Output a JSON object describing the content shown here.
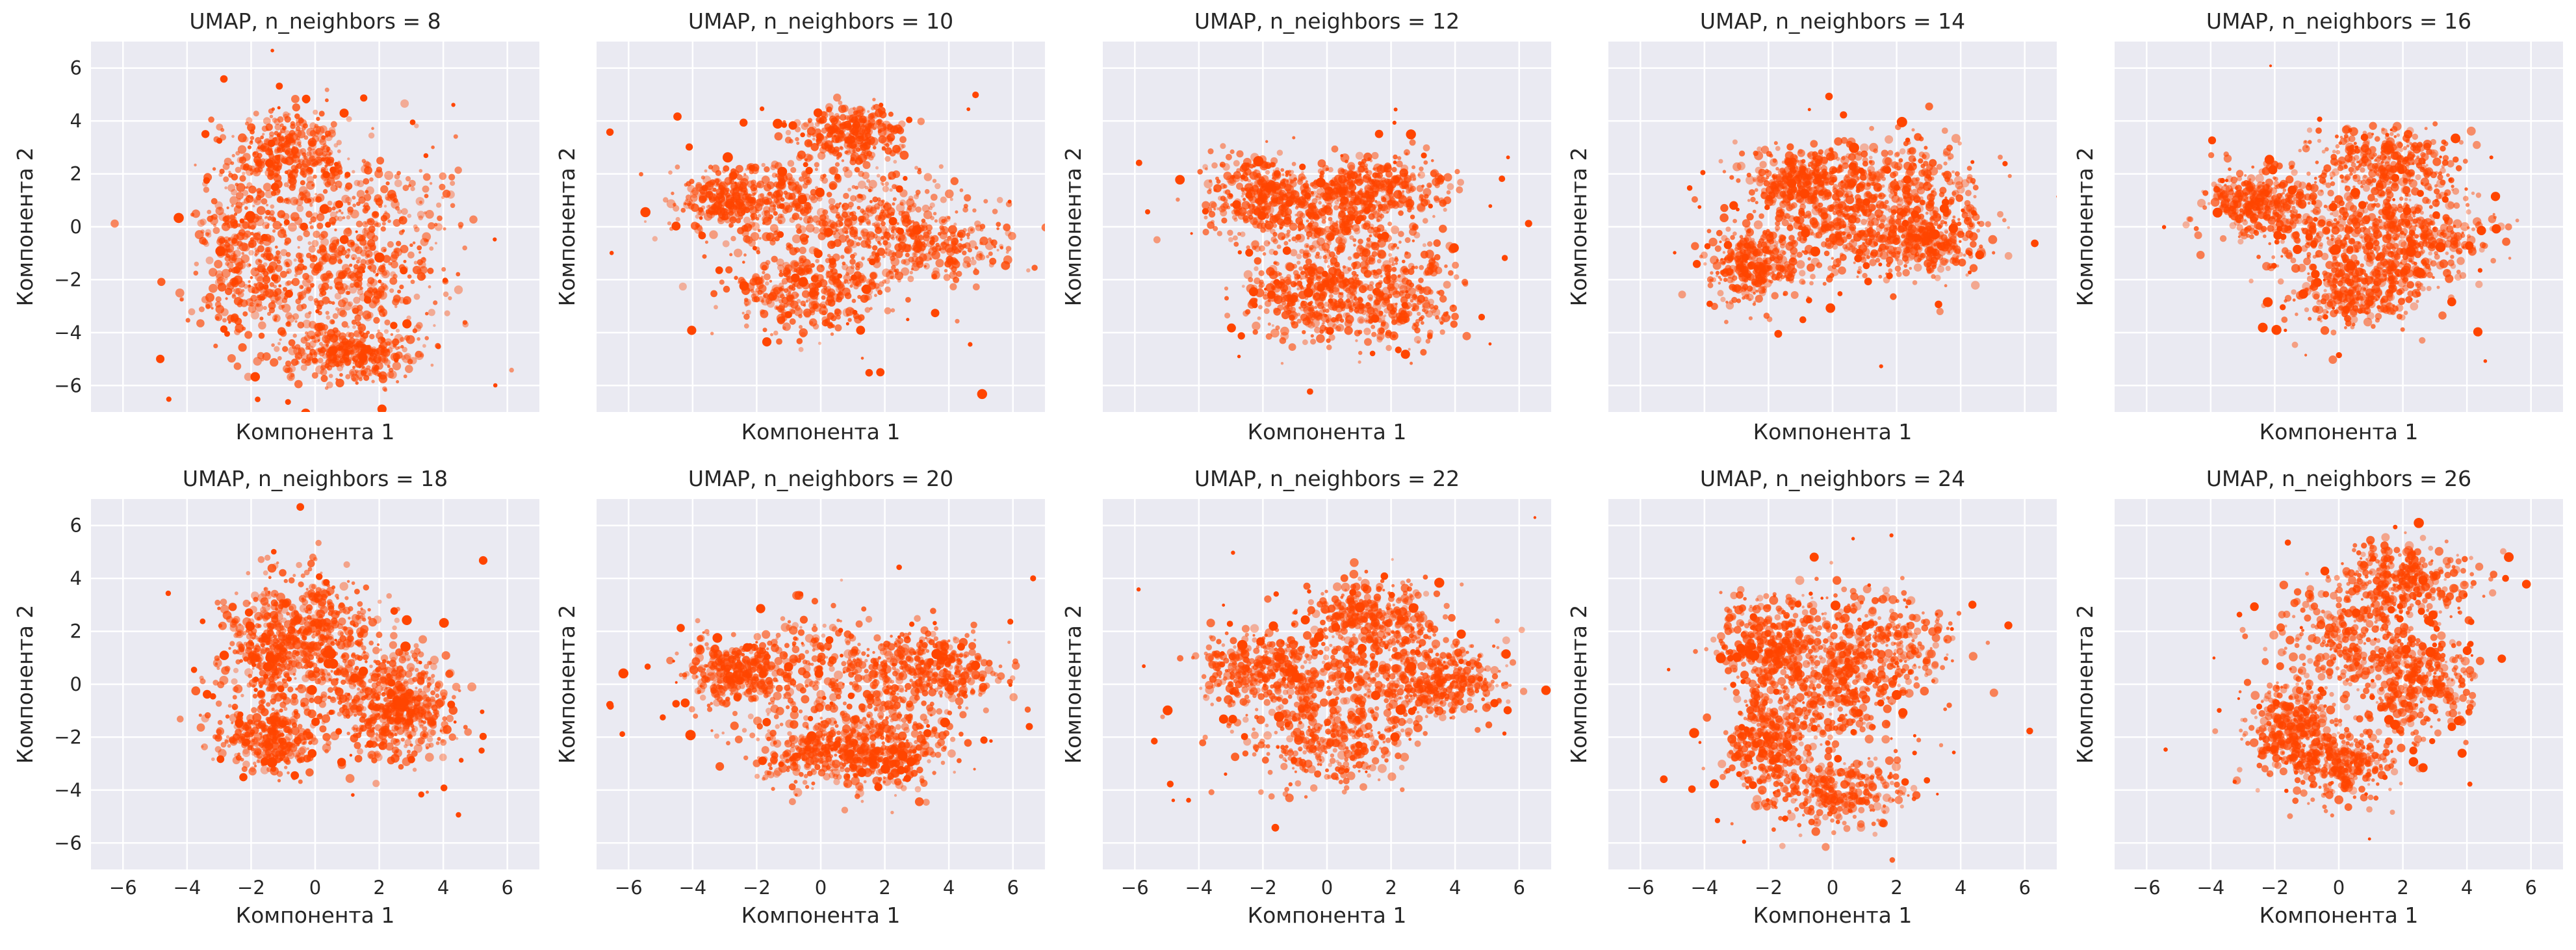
{
  "chart_data": {
    "type": "scatter",
    "layout": "2 rows x 5 columns",
    "shared_axes": true,
    "point_color": "#ff4500",
    "background_color": "#eaeaf2",
    "grid": true,
    "xlim": [
      -7,
      7
    ],
    "ylim": [
      -7,
      7
    ],
    "x_ticks": [
      -6,
      -4,
      -2,
      0,
      2,
      4,
      6
    ],
    "y_ticks": [
      -6,
      -4,
      -2,
      0,
      2,
      4,
      6
    ],
    "x_tick_labels": [
      "−6",
      "−4",
      "−2",
      "0",
      "2",
      "4",
      "6"
    ],
    "y_tick_labels": [
      "−6",
      "−4",
      "−2",
      "0",
      "2",
      "4",
      "6"
    ],
    "xlabel": "Компонента 1",
    "ylabel": "Компонента 2",
    "panels": [
      {
        "title": "UMAP, n_neighbors = 8",
        "n_neighbors": 8,
        "clusters": [
          {
            "x": -0.8,
            "y": 2.8,
            "sx": 1.0,
            "sy": 1.0
          },
          {
            "x": 0.3,
            "y": -2.5,
            "sx": 2.0,
            "sy": 1.4
          },
          {
            "x": 1.5,
            "y": 0.3,
            "sx": 1.8,
            "sy": 1.6
          },
          {
            "x": -2.2,
            "y": -0.5,
            "sx": 0.9,
            "sy": 1.8
          },
          {
            "x": 1.0,
            "y": -4.8,
            "sx": 1.2,
            "sy": 0.6
          }
        ]
      },
      {
        "title": "UMAP, n_neighbors = 10",
        "n_neighbors": 10,
        "clusters": [
          {
            "x": -2.8,
            "y": 1.0,
            "sx": 1.1,
            "sy": 0.7
          },
          {
            "x": 0.5,
            "y": 0.5,
            "sx": 2.0,
            "sy": 1.2
          },
          {
            "x": 3.0,
            "y": -0.5,
            "sx": 1.6,
            "sy": 1.0
          },
          {
            "x": 1.0,
            "y": 3.5,
            "sx": 1.0,
            "sy": 0.6
          },
          {
            "x": -0.5,
            "y": -2.5,
            "sx": 1.4,
            "sy": 0.9
          }
        ]
      },
      {
        "title": "UMAP, n_neighbors = 12",
        "n_neighbors": 12,
        "clusters": [
          {
            "x": -2.0,
            "y": 1.2,
            "sx": 1.1,
            "sy": 0.9
          },
          {
            "x": 0.2,
            "y": 0.0,
            "sx": 1.6,
            "sy": 1.3
          },
          {
            "x": 2.0,
            "y": -2.5,
            "sx": 1.3,
            "sy": 1.2
          },
          {
            "x": -0.5,
            "y": -2.8,
            "sx": 1.2,
            "sy": 0.9
          },
          {
            "x": 1.5,
            "y": 1.5,
            "sx": 1.2,
            "sy": 0.8
          }
        ]
      },
      {
        "title": "UMAP, n_neighbors = 14",
        "n_neighbors": 14,
        "clusters": [
          {
            "x": -2.5,
            "y": -1.5,
            "sx": 0.8,
            "sy": 0.8
          },
          {
            "x": 0.0,
            "y": 0.0,
            "sx": 1.6,
            "sy": 1.2
          },
          {
            "x": 2.0,
            "y": 1.5,
            "sx": 1.5,
            "sy": 1.1
          },
          {
            "x": -1.0,
            "y": 1.8,
            "sx": 1.0,
            "sy": 0.7
          },
          {
            "x": 3.0,
            "y": -0.5,
            "sx": 1.0,
            "sy": 0.8
          }
        ]
      },
      {
        "title": "UMAP, n_neighbors = 16",
        "n_neighbors": 16,
        "clusters": [
          {
            "x": -2.5,
            "y": 1.0,
            "sx": 0.9,
            "sy": 0.7
          },
          {
            "x": 0.0,
            "y": 0.0,
            "sx": 1.6,
            "sy": 1.2
          },
          {
            "x": 2.5,
            "y": -0.5,
            "sx": 1.3,
            "sy": 1.1
          },
          {
            "x": 1.5,
            "y": 2.5,
            "sx": 1.2,
            "sy": 0.8
          },
          {
            "x": 0.5,
            "y": -2.5,
            "sx": 1.2,
            "sy": 0.8
          }
        ]
      },
      {
        "title": "UMAP, n_neighbors = 18",
        "n_neighbors": 18,
        "clusters": [
          {
            "x": -1.5,
            "y": -2.0,
            "sx": 0.9,
            "sy": 0.8
          },
          {
            "x": 0.0,
            "y": 2.0,
            "sx": 1.2,
            "sy": 1.5
          },
          {
            "x": 1.5,
            "y": 0.0,
            "sx": 1.4,
            "sy": 1.5
          },
          {
            "x": -1.5,
            "y": 1.5,
            "sx": 0.9,
            "sy": 1.0
          },
          {
            "x": 2.8,
            "y": -1.0,
            "sx": 0.8,
            "sy": 1.0
          }
        ]
      },
      {
        "title": "UMAP, n_neighbors = 20",
        "n_neighbors": 20,
        "clusters": [
          {
            "x": -2.5,
            "y": 0.5,
            "sx": 1.0,
            "sy": 0.7
          },
          {
            "x": 0.5,
            "y": 0.5,
            "sx": 2.0,
            "sy": 1.2
          },
          {
            "x": 3.5,
            "y": 0.5,
            "sx": 1.2,
            "sy": 0.9
          },
          {
            "x": 2.0,
            "y": -2.5,
            "sx": 1.2,
            "sy": 0.9
          },
          {
            "x": 0.0,
            "y": -2.5,
            "sx": 1.3,
            "sy": 0.8
          }
        ]
      },
      {
        "title": "UMAP, n_neighbors = 22",
        "n_neighbors": 22,
        "clusters": [
          {
            "x": -2.0,
            "y": 0.5,
            "sx": 1.2,
            "sy": 0.8
          },
          {
            "x": 0.5,
            "y": 0.2,
            "sx": 2.0,
            "sy": 1.2
          },
          {
            "x": 3.5,
            "y": 0.0,
            "sx": 1.2,
            "sy": 0.8
          },
          {
            "x": 1.5,
            "y": 2.5,
            "sx": 1.2,
            "sy": 0.8
          },
          {
            "x": 0.0,
            "y": -2.2,
            "sx": 1.5,
            "sy": 0.9
          }
        ]
      },
      {
        "title": "UMAP, n_neighbors = 24",
        "n_neighbors": 24,
        "clusters": [
          {
            "x": -2.0,
            "y": 1.5,
            "sx": 0.9,
            "sy": 1.0
          },
          {
            "x": 0.0,
            "y": 0.0,
            "sx": 1.3,
            "sy": 1.4
          },
          {
            "x": 1.5,
            "y": 1.5,
            "sx": 1.3,
            "sy": 1.2
          },
          {
            "x": 0.0,
            "y": -4.0,
            "sx": 1.4,
            "sy": 0.8
          },
          {
            "x": -2.0,
            "y": -2.0,
            "sx": 0.8,
            "sy": 1.0
          }
        ]
      },
      {
        "title": "UMAP, n_neighbors = 26",
        "n_neighbors": 26,
        "clusters": [
          {
            "x": -1.5,
            "y": -1.5,
            "sx": 0.8,
            "sy": 1.0
          },
          {
            "x": 0.5,
            "y": 1.5,
            "sx": 1.4,
            "sy": 1.3
          },
          {
            "x": 2.0,
            "y": 4.0,
            "sx": 1.2,
            "sy": 0.8
          },
          {
            "x": 0.0,
            "y": -3.0,
            "sx": 1.0,
            "sy": 0.8
          },
          {
            "x": 2.5,
            "y": 0.0,
            "sx": 0.9,
            "sy": 1.1
          }
        ]
      }
    ]
  }
}
